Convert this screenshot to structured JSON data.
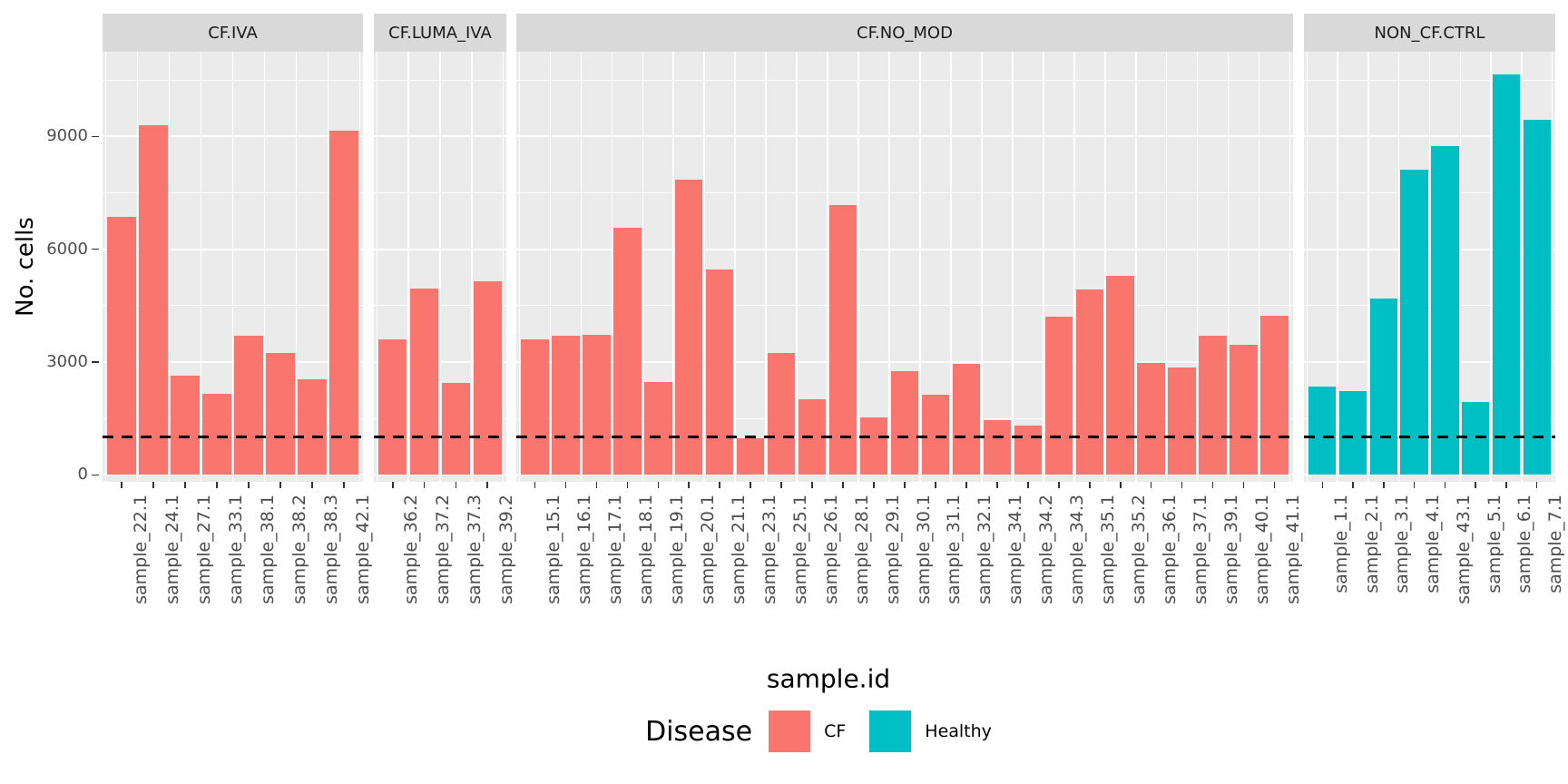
{
  "chart_data": {
    "type": "bar",
    "title": "",
    "xlabel": "sample.id",
    "ylabel": "No. cells",
    "grid": true,
    "y_axis": {
      "ticks": [
        0,
        3000,
        6000,
        9000
      ],
      "tick_labels": [
        "0",
        "3000",
        "6000",
        "9000"
      ],
      "minor_ticks": [
        1500,
        4500,
        7500,
        10500
      ],
      "ylim": [
        0,
        11250
      ]
    },
    "hline": {
      "value": 1000,
      "style": "dashed",
      "color": "#000000"
    },
    "legend": {
      "title": "Disease",
      "position": "bottom",
      "entries": [
        {
          "label": "CF",
          "color": "#F8766D"
        },
        {
          "label": "Healthy",
          "color": "#00BFC4"
        }
      ]
    },
    "facets": [
      {
        "label": "CF.IVA",
        "group": "CF",
        "categories": [
          "sample_22.1",
          "sample_24.1",
          "sample_27.1",
          "sample_33.1",
          "sample_38.1",
          "sample_38.2",
          "sample_38.3",
          "sample_42.1"
        ],
        "values": [
          6850,
          9300,
          2650,
          2150,
          3700,
          3250,
          2550,
          9150
        ]
      },
      {
        "label": "CF.LUMA_IVA",
        "group": "CF",
        "categories": [
          "sample_36.2",
          "sample_37.2",
          "sample_37.3",
          "sample_39.2"
        ],
        "values": [
          3600,
          4950,
          2450,
          5150
        ]
      },
      {
        "label": "CF.NO_MOD",
        "group": "CF",
        "categories": [
          "sample_15.1",
          "sample_16.1",
          "sample_17.1",
          "sample_18.1",
          "sample_19.1",
          "sample_20.1",
          "sample_21.1",
          "sample_23.1",
          "sample_25.1",
          "sample_26.1",
          "sample_28.1",
          "sample_29.1",
          "sample_30.1",
          "sample_31.1",
          "sample_32.1",
          "sample_34.1",
          "sample_34.2",
          "sample_34.3",
          "sample_35.1",
          "sample_35.2",
          "sample_36.1",
          "sample_37.1",
          "sample_39.1",
          "sample_40.1",
          "sample_41.1"
        ],
        "values": [
          3600,
          3700,
          3730,
          6570,
          2470,
          7840,
          5460,
          970,
          3250,
          2000,
          7180,
          1520,
          2750,
          2120,
          2950,
          1460,
          1320,
          4200,
          4940,
          5290,
          2970,
          2850,
          3690,
          3470,
          4230
        ]
      },
      {
        "label": "NON_CF.CTRL",
        "group": "Healthy",
        "categories": [
          "sample_1.1",
          "sample_2.1",
          "sample_3.1",
          "sample_4.1",
          "sample_43.1",
          "sample_5.1",
          "sample_6.1",
          "sample_7.1"
        ],
        "values": [
          2340,
          2230,
          4690,
          8110,
          8750,
          1950,
          10660,
          9450
        ]
      }
    ],
    "group_colors": {
      "CF": "#F8766D",
      "Healthy": "#00BFC4"
    }
  },
  "style_colors": {
    "panel_background": "#EBEBEB",
    "strip_background": "#D9D9D9",
    "gridline": "#FFFFFF",
    "axis_text": "#4D4D4D",
    "tick_mark": "#333333"
  }
}
